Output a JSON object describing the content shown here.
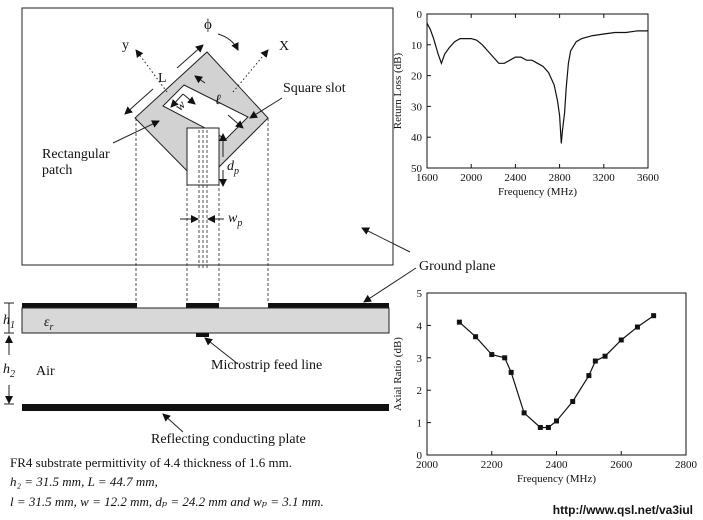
{
  "diagram": {
    "axis_y": "y",
    "axis_x": "X",
    "phi": "ϕ",
    "len_L": "L",
    "len_l": "ℓ",
    "len_w": "w",
    "len_dp": "d",
    "len_dp_sub": "p",
    "len_wp": "w",
    "len_wp_sub": "p",
    "square_slot": "Square slot",
    "rect_patch_1": "Rectangular",
    "rect_patch_2": "patch",
    "ground_plane": "Ground plane",
    "eps_r": "ε",
    "eps_r_sub": "r",
    "h1": "h",
    "h1_sub": "1",
    "h2": "h",
    "h2_sub": "2",
    "air": "Air",
    "microstrip": "Microstrip feed line",
    "reflecting": "Reflecting conducting plate"
  },
  "caption": {
    "line1": "FR4 substrate  permittivity of 4.4  thickness of 1.6 mm.",
    "line2": "h₂ = 31.5 mm, L = 44.7 mm,",
    "line3": "l = 31.5 mm, w = 12.2 mm, dₚ = 24.2 mm and wₚ = 3.1 mm."
  },
  "watermark": "http://www.qsl.net/va3iul",
  "chart_data": [
    {
      "type": "line",
      "xlabel": "Frequency (MHz)",
      "ylabel": "Return Loss (dB)",
      "xlim": [
        1600,
        3600
      ],
      "ylim": [
        0,
        50
      ],
      "y_inverted": true,
      "xticks": [
        1600,
        2000,
        2400,
        2800,
        3200,
        3600
      ],
      "yticks": [
        0,
        10,
        20,
        30,
        40,
        50
      ],
      "series": [
        {
          "markers": false,
          "x": [
            1600,
            1630,
            1660,
            1700,
            1730,
            1760,
            1800,
            1850,
            1900,
            1950,
            2000,
            2050,
            2100,
            2150,
            2200,
            2250,
            2300,
            2350,
            2400,
            2450,
            2500,
            2550,
            2600,
            2650,
            2700,
            2750,
            2780,
            2800,
            2815,
            2825,
            2835,
            2845,
            2860,
            2880,
            2900,
            2950,
            3000,
            3100,
            3200,
            3300,
            3400,
            3500,
            3600
          ],
          "y": [
            3,
            5,
            8,
            13,
            16,
            13,
            11,
            9,
            8,
            8,
            8,
            8.5,
            10,
            12,
            14,
            16,
            16,
            15,
            14,
            14,
            15,
            15,
            16,
            17,
            19,
            23,
            28,
            33,
            42,
            38,
            35,
            32,
            24,
            16,
            12,
            9,
            8,
            7,
            6.5,
            6,
            6,
            5.5,
            5.5
          ]
        }
      ]
    },
    {
      "type": "line",
      "xlabel": "Frequency (MHz)",
      "ylabel": "Axial Ratio (dB)",
      "xlim": [
        2000,
        2800
      ],
      "ylim": [
        0,
        5
      ],
      "xticks": [
        2000,
        2200,
        2400,
        2600,
        2800
      ],
      "yticks": [
        0,
        1,
        2,
        3,
        4,
        5
      ],
      "series": [
        {
          "markers": true,
          "x": [
            2100,
            2150,
            2200,
            2240,
            2260,
            2300,
            2350,
            2375,
            2400,
            2450,
            2500,
            2520,
            2550,
            2600,
            2650,
            2700
          ],
          "y": [
            4.1,
            3.65,
            3.1,
            3.0,
            2.55,
            1.3,
            0.85,
            0.85,
            1.05,
            1.65,
            2.45,
            2.9,
            3.05,
            3.55,
            3.95,
            4.3
          ]
        }
      ]
    }
  ]
}
